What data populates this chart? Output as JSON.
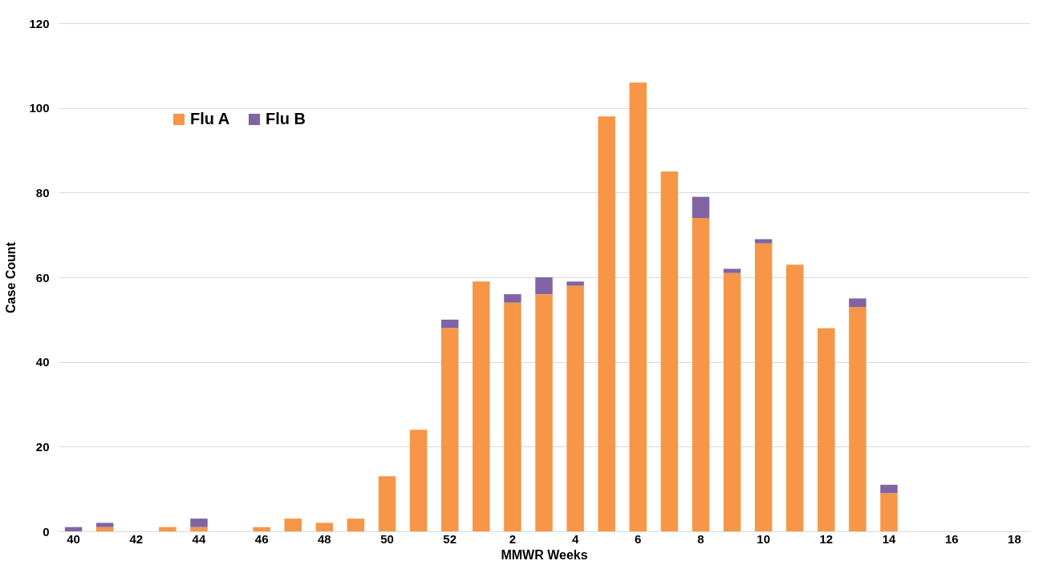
{
  "chart_data": {
    "type": "bar",
    "stacked": true,
    "xlabel": "MMWR Weeks",
    "ylabel": "Case Count",
    "categories": [
      "40",
      null,
      "42",
      null,
      "44",
      null,
      "46",
      null,
      "48",
      null,
      "50",
      null,
      "52",
      null,
      "2",
      null,
      "4",
      null,
      "6",
      null,
      "8",
      null,
      "10",
      null,
      "12",
      null,
      "14",
      null,
      "16",
      null,
      "18"
    ],
    "series": [
      {
        "name": "Flu A",
        "color": "#f79646",
        "values": [
          0,
          1,
          0,
          1,
          1,
          0,
          1,
          3,
          2,
          3,
          13,
          24,
          48,
          59,
          54,
          56,
          58,
          98,
          106,
          85,
          74,
          61,
          68,
          63,
          48,
          53,
          9,
          0,
          0,
          0,
          0
        ]
      },
      {
        "name": "Flu B",
        "color": "#8064a2",
        "values": [
          1,
          1,
          0,
          0,
          2,
          0,
          0,
          0,
          0,
          0,
          0,
          0,
          2,
          0,
          2,
          4,
          1,
          0,
          0,
          0,
          5,
          1,
          1,
          0,
          0,
          2,
          2,
          0,
          0,
          0,
          0
        ]
      }
    ],
    "ylim": [
      0,
      120
    ],
    "yticks": [
      0,
      20,
      40,
      60,
      80,
      100,
      120
    ],
    "grid": "y",
    "legend": "top left"
  }
}
